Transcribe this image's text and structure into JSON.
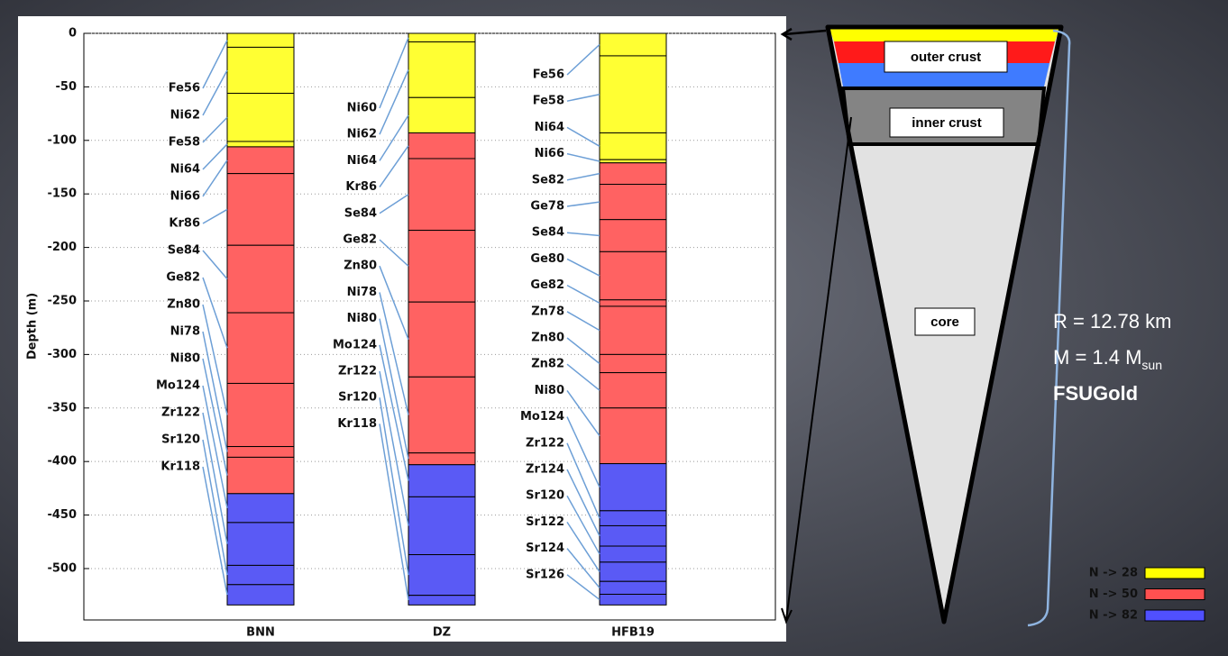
{
  "chart_data": {
    "type": "layers",
    "y_label": "Depth (m)",
    "ylim": [
      -548,
      0
    ],
    "yticks": [
      0,
      -50,
      -100,
      -150,
      -200,
      -250,
      -300,
      -350,
      -400,
      -450,
      -500
    ],
    "grid": true,
    "columns": [
      {
        "name": "BNN",
        "layers": [
          {
            "name": "Fe56",
            "top": 0,
            "bottom": -13,
            "color": "#ffff33"
          },
          {
            "name": "Ni62",
            "top": -13,
            "bottom": -56,
            "color": "#ffff33"
          },
          {
            "name": "Fe58",
            "top": -56,
            "bottom": -101,
            "color": "#ffff33"
          },
          {
            "name": "Ni64",
            "top": -101,
            "bottom": -106,
            "color": "#ffff33"
          },
          {
            "name": "Ni66",
            "top": -106,
            "bottom": -131,
            "color": "#ff6262"
          },
          {
            "name": "Kr86",
            "top": -131,
            "bottom": -198,
            "color": "#ff6262"
          },
          {
            "name": "Se84",
            "top": -198,
            "bottom": -261,
            "color": "#ff6262"
          },
          {
            "name": "Ge82",
            "top": -261,
            "bottom": -327,
            "color": "#ff6262"
          },
          {
            "name": "Zn80",
            "top": -327,
            "bottom": -386,
            "color": "#ff6262"
          },
          {
            "name": "Ni78",
            "top": -386,
            "bottom": -396,
            "color": "#ff6262"
          },
          {
            "name": "Ni80",
            "top": -396,
            "bottom": -430,
            "color": "#ff6262"
          },
          {
            "name": "Mo124",
            "top": -430,
            "bottom": -457,
            "color": "#5a5af5"
          },
          {
            "name": "Zr122",
            "top": -457,
            "bottom": -497,
            "color": "#5a5af5"
          },
          {
            "name": "Sr120",
            "top": -497,
            "bottom": -515,
            "color": "#5a5af5"
          },
          {
            "name": "Kr118",
            "top": -515,
            "bottom": -534,
            "color": "#5a5af5"
          }
        ]
      },
      {
        "name": "DZ",
        "layers": [
          {
            "name": "Ni60",
            "top": 0,
            "bottom": -8,
            "color": "#ffff33"
          },
          {
            "name": "Ni62",
            "top": -8,
            "bottom": -60,
            "color": "#ffff33"
          },
          {
            "name": "Ni64",
            "top": -60,
            "bottom": -93,
            "color": "#ffff33"
          },
          {
            "name": "Kr86",
            "top": -93,
            "bottom": -117,
            "color": "#ff6262"
          },
          {
            "name": "Se84",
            "top": -117,
            "bottom": -184,
            "color": "#ff6262"
          },
          {
            "name": "Ge82",
            "top": -184,
            "bottom": -251,
            "color": "#ff6262"
          },
          {
            "name": "Zn80",
            "top": -251,
            "bottom": -321,
            "color": "#ff6262"
          },
          {
            "name": "Ni78",
            "top": -321,
            "bottom": -392,
            "color": "#ff6262"
          },
          {
            "name": "Ni80",
            "top": -392,
            "bottom": -403,
            "color": "#ff6262"
          },
          {
            "name": "Mo124",
            "top": -403,
            "bottom": -433,
            "color": "#5a5af5"
          },
          {
            "name": "Zr122",
            "top": -433,
            "bottom": -487,
            "color": "#5a5af5"
          },
          {
            "name": "Sr120",
            "top": -487,
            "bottom": -525,
            "color": "#5a5af5"
          },
          {
            "name": "Kr118",
            "top": -525,
            "bottom": -534,
            "color": "#5a5af5"
          }
        ]
      },
      {
        "name": "HFB19",
        "layers": [
          {
            "name": "Fe56",
            "top": 0,
            "bottom": -21,
            "color": "#ffff33"
          },
          {
            "name": "Fe58",
            "top": -21,
            "bottom": -93,
            "color": "#ffff33"
          },
          {
            "name": "Ni64",
            "top": -93,
            "bottom": -118,
            "color": "#ffff33"
          },
          {
            "name": "Ni66",
            "top": -118,
            "bottom": -121,
            "color": "#ffff33"
          },
          {
            "name": "Se82",
            "top": -121,
            "bottom": -141,
            "color": "#ff6262"
          },
          {
            "name": "Ge78",
            "top": -141,
            "bottom": -174,
            "color": "#ff6262"
          },
          {
            "name": "Se84",
            "top": -174,
            "bottom": -204,
            "color": "#ff6262"
          },
          {
            "name": "Ge80",
            "top": -204,
            "bottom": -249,
            "color": "#ff6262"
          },
          {
            "name": "Ge82",
            "top": -249,
            "bottom": -255,
            "color": "#ff6262"
          },
          {
            "name": "Zn78",
            "top": -255,
            "bottom": -300,
            "color": "#ff6262"
          },
          {
            "name": "Zn80",
            "top": -300,
            "bottom": -317,
            "color": "#ff6262"
          },
          {
            "name": "Zn82",
            "top": -317,
            "bottom": -350,
            "color": "#ff6262"
          },
          {
            "name": "Ni80",
            "top": -350,
            "bottom": -402,
            "color": "#ff6262"
          },
          {
            "name": "Mo124",
            "top": -402,
            "bottom": -446,
            "color": "#5a5af5"
          },
          {
            "name": "Zr122",
            "top": -446,
            "bottom": -460,
            "color": "#5a5af5"
          },
          {
            "name": "Zr124",
            "top": -460,
            "bottom": -479,
            "color": "#5a5af5"
          },
          {
            "name": "Sr120",
            "top": -479,
            "bottom": -494,
            "color": "#5a5af5"
          },
          {
            "name": "Sr122",
            "top": -494,
            "bottom": -512,
            "color": "#5a5af5"
          },
          {
            "name": "Sr124",
            "top": -512,
            "bottom": -524,
            "color": "#5a5af5"
          },
          {
            "name": "Sr126",
            "top": -524,
            "bottom": -534,
            "color": "#5a5af5"
          }
        ]
      }
    ],
    "legend": [
      {
        "name": "N -> 28",
        "color": "#ffff00"
      },
      {
        "name": "N -> 50",
        "color": "#ff5050"
      },
      {
        "name": "N -> 82",
        "color": "#5050ff"
      }
    ],
    "legend_position": "lower right"
  },
  "diagram": {
    "outer_crust": "outer crust",
    "inner_crust": "inner crust",
    "core": "core",
    "radius": "R = 12.78 km",
    "mass": "M = 1.4 M",
    "mass_unit": "sun",
    "model": "FSUGold"
  }
}
